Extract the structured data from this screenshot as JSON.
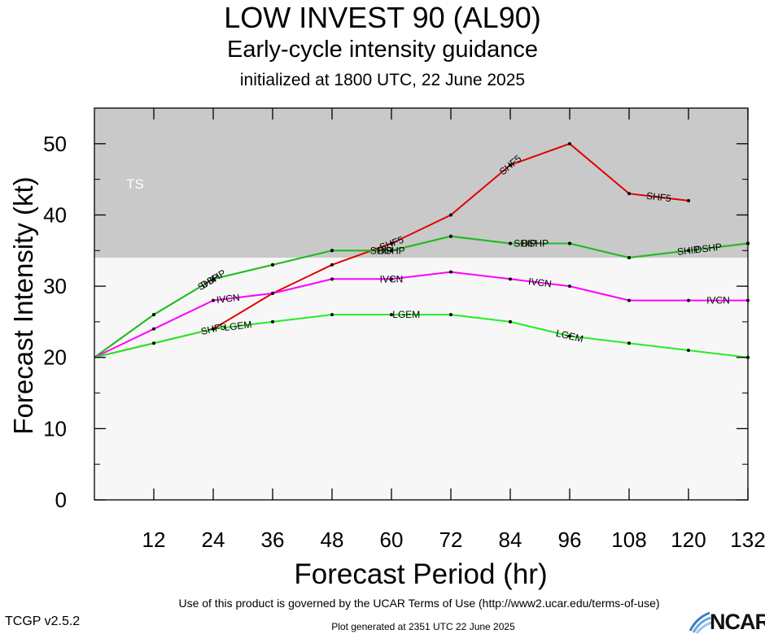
{
  "chart_data": {
    "type": "line",
    "title": "LOW INVEST 90 (AL90)",
    "subtitle": "Early-cycle intensity guidance",
    "initialized": "initialized at 1800 UTC, 22 June 2025",
    "xlabel": "Forecast Period (hr)",
    "ylabel": "Forecast Intensity (kt)",
    "xlim": [
      0,
      132
    ],
    "ylim": [
      0,
      55
    ],
    "xticks": [
      12,
      24,
      36,
      48,
      60,
      72,
      84,
      96,
      108,
      120,
      132
    ],
    "yticks": [
      0,
      10,
      20,
      30,
      40,
      50
    ],
    "bands": [
      {
        "label": "TS",
        "ymin": 34,
        "ymax": 55,
        "color": "#c9c9c9"
      },
      {
        "label": "",
        "ymin": 0,
        "ymax": 34,
        "color": "#f7f7f7"
      }
    ],
    "series": [
      {
        "name": "SHF5",
        "color": "#e00000",
        "x": [
          0,
          24,
          36,
          48,
          60,
          72,
          84,
          96,
          108,
          120
        ],
        "y": [
          20,
          24,
          29,
          33,
          36,
          40,
          47,
          50,
          43,
          42
        ],
        "labels": [
          24,
          60,
          84,
          114
        ]
      },
      {
        "name": "DSHP",
        "color": "#22bb22",
        "x": [
          0,
          12,
          24,
          36,
          48,
          60,
          72,
          84,
          96,
          108,
          120,
          132
        ],
        "y": [
          20,
          26,
          31,
          33,
          35,
          35,
          37,
          36,
          36,
          34,
          35,
          36
        ],
        "labels": [
          24,
          60,
          89,
          124
        ]
      },
      {
        "name": "SHIP",
        "color": "#22bb22",
        "x": [
          0,
          12,
          24,
          36,
          48,
          60,
          72,
          84,
          96,
          108,
          120,
          132
        ],
        "y": [
          20,
          26,
          31,
          33,
          35,
          35,
          37,
          36,
          36,
          34,
          35,
          36
        ],
        "labels": [
          23,
          58,
          87,
          120
        ]
      },
      {
        "name": "IVCN",
        "color": "#ff00ff",
        "x": [
          0,
          12,
          24,
          36,
          48,
          60,
          72,
          84,
          96,
          108,
          120,
          132
        ],
        "y": [
          20,
          24,
          28,
          29,
          31,
          31,
          32,
          31,
          30,
          28,
          28,
          28
        ],
        "labels": [
          27,
          60,
          90,
          126
        ]
      },
      {
        "name": "LGEM",
        "color": "#22ee22",
        "x": [
          0,
          12,
          24,
          36,
          48,
          60,
          72,
          84,
          96,
          108,
          120,
          132
        ],
        "y": [
          20,
          22,
          24,
          25,
          26,
          26,
          26,
          25,
          23,
          22,
          21,
          20
        ],
        "labels": [
          29,
          63,
          96
        ]
      }
    ]
  },
  "footer": {
    "terms": "Use of this product is governed by the UCAR Terms of Use (http://www2.ucar.edu/terms-of-use)",
    "version": "TCGP v2.5.2",
    "generated": "Plot generated at 2351 UTC   22 June 2025",
    "logo_text": "NCAR"
  }
}
